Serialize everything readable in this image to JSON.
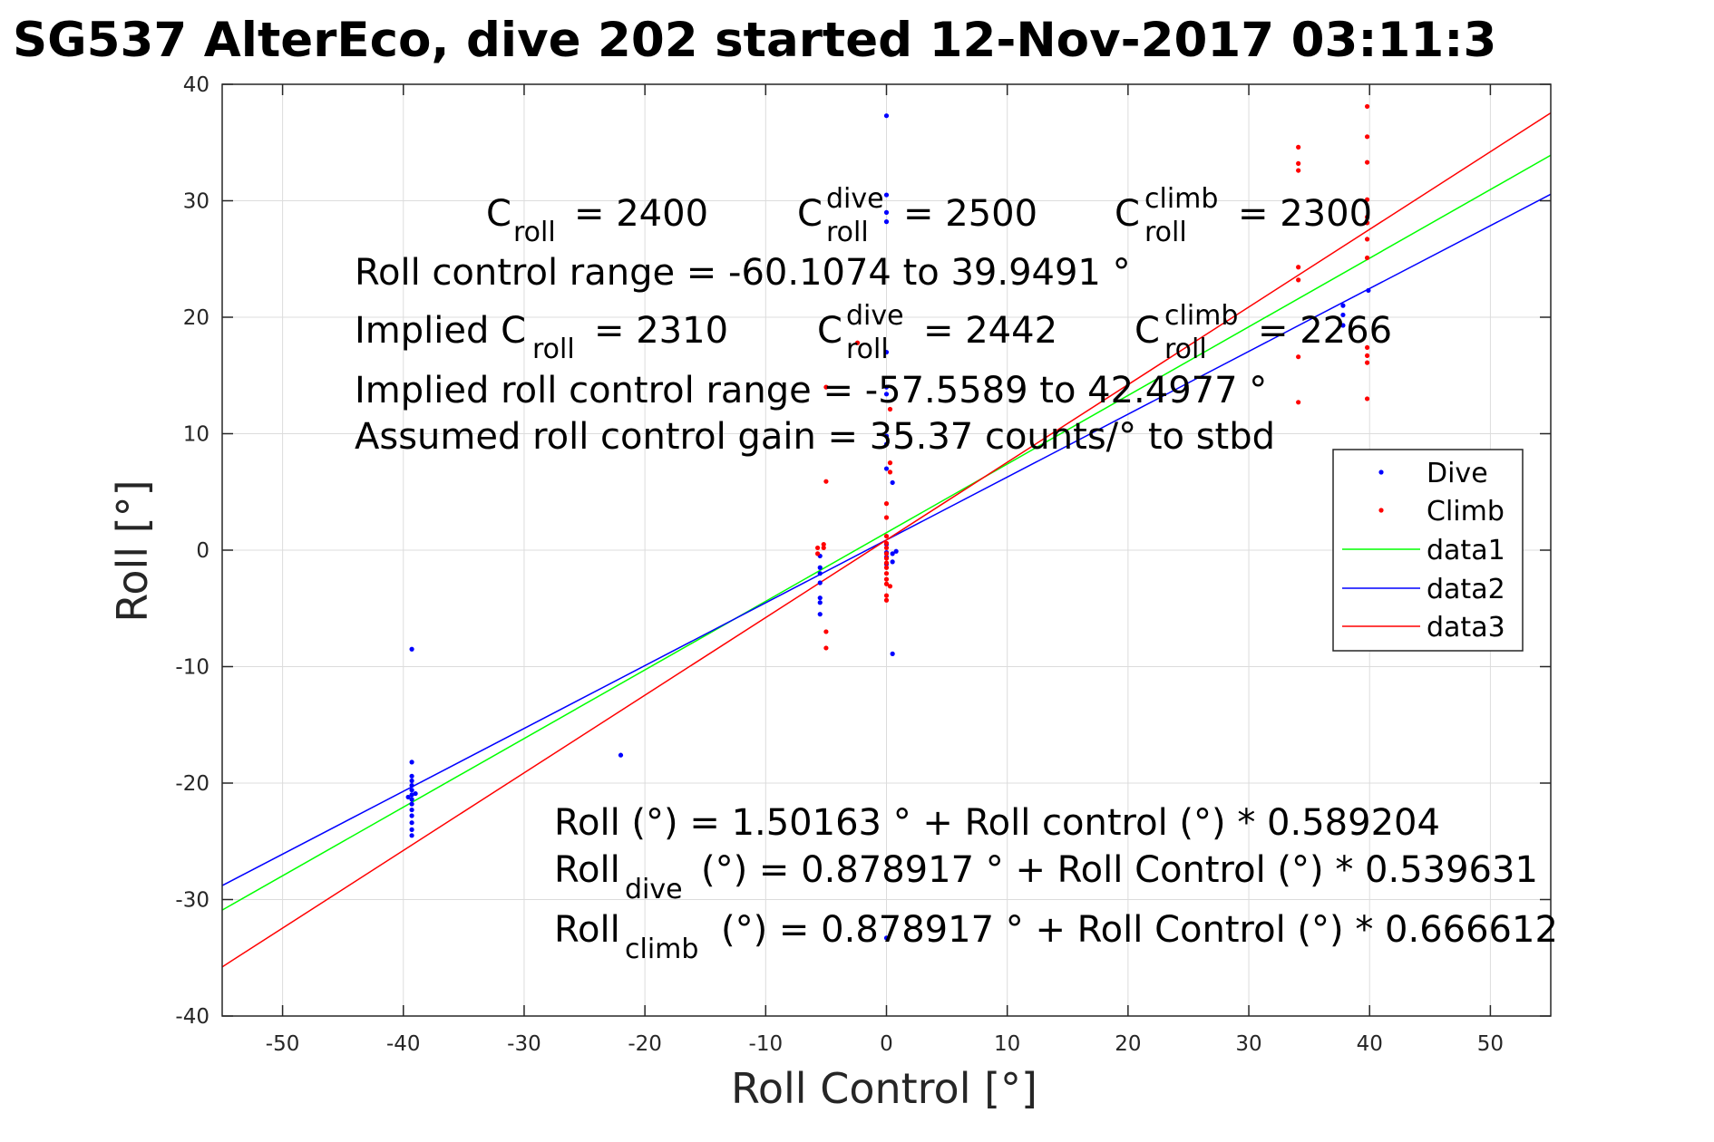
{
  "title": "SG537 AlterEco, dive 202 started 12-Nov-2017 03:11:3",
  "annotations": {
    "c_roll_base": "C",
    "c_roll_sub": "roll",
    "c_roll_value": "= 2400",
    "c_dive_sup": "dive",
    "c_dive_sub": "roll",
    "c_dive_value": "= 2500",
    "c_climb_sup": "climb",
    "c_climb_sub": "roll",
    "c_climb_value": "= 2300",
    "roll_range": "Roll control range = -60.1074 to 39.9491 °",
    "implied_prefix": "Implied C",
    "implied_sub": "roll",
    "implied_value": "= 2310",
    "implied_dive_sup": "dive",
    "implied_dive_sub": "roll",
    "implied_dive_value": "= 2442",
    "implied_climb_sup": "climb",
    "implied_climb_sub": "roll",
    "implied_climb_value": "= 2266",
    "implied_range": "Implied roll control range = -57.5589 to 42.4977 °",
    "gain": "Assumed roll control gain = 35.37 counts/° to stbd",
    "fit_all": "Roll (°) = 1.50163 ° + Roll control (°) * 0.589204",
    "fit_dive_pre": "Roll",
    "fit_dive_sub": "dive",
    "fit_dive_post": "(°) = 0.878917 ° + Roll Control (°) * 0.539631",
    "fit_climb_pre": "Roll",
    "fit_climb_sub": "climb",
    "fit_climb_post": "(°) = 0.878917 ° + Roll Control (°) * 0.666612"
  },
  "chart_data": {
    "type": "scatter",
    "title": "SG537 AlterEco, dive 202 started 12-Nov-2017 03:11:3",
    "xlabel": "Roll Control [°]",
    "ylabel": "Roll [°]",
    "xlim": [
      -55,
      55
    ],
    "ylim": [
      -40,
      40
    ],
    "xticks": [
      -50,
      -40,
      -30,
      -20,
      -10,
      0,
      10,
      20,
      30,
      40,
      50
    ],
    "yticks": [
      -40,
      -30,
      -20,
      -10,
      0,
      10,
      20,
      30,
      40
    ],
    "xtick_labels": [
      "-50",
      "-40",
      "-30",
      "-20",
      "-10",
      "0",
      "10",
      "20",
      "30",
      "40",
      "50"
    ],
    "ytick_labels": [
      "-40",
      "-30",
      "-20",
      "-10",
      "0",
      "10",
      "20",
      "30",
      "40"
    ],
    "grid": true,
    "legend_position": "right",
    "series": [
      {
        "name": "Dive",
        "kind": "points",
        "color": "#0000ff",
        "points": [
          [
            -39.3,
            -8.5
          ],
          [
            -39.3,
            -18.2
          ],
          [
            -39.3,
            -19.4
          ],
          [
            -39.3,
            -19.8
          ],
          [
            -39.3,
            -20.2
          ],
          [
            -39.3,
            -20.6
          ],
          [
            -39.3,
            -21.0
          ],
          [
            -39.3,
            -21.4
          ],
          [
            -39.3,
            -21.8
          ],
          [
            -39.3,
            -22.3
          ],
          [
            -39.3,
            -22.8
          ],
          [
            -39.3,
            -23.4
          ],
          [
            -39.3,
            -24.0
          ],
          [
            -39.3,
            -24.5
          ],
          [
            -39.0,
            -20.9
          ],
          [
            -39.6,
            -21.2
          ],
          [
            -22.0,
            -17.6
          ],
          [
            -5.5,
            -0.5
          ],
          [
            -5.5,
            -1.5
          ],
          [
            -5.5,
            -2.0
          ],
          [
            -5.5,
            -2.8
          ],
          [
            -5.5,
            -4.1
          ],
          [
            -5.5,
            -4.5
          ],
          [
            -5.5,
            -5.5
          ],
          [
            0.0,
            37.3
          ],
          [
            0.0,
            30.5
          ],
          [
            0.0,
            29.0
          ],
          [
            0.0,
            28.2
          ],
          [
            0.0,
            17.0
          ],
          [
            0.0,
            14.0
          ],
          [
            0.0,
            13.4
          ],
          [
            0.0,
            9.8
          ],
          [
            0.0,
            9.1
          ],
          [
            0.0,
            7.0
          ],
          [
            0.0,
            0.5
          ],
          [
            0.0,
            -0.2
          ],
          [
            0.0,
            -0.6
          ],
          [
            0.0,
            -1.2
          ],
          [
            0.0,
            -33.3
          ],
          [
            0.5,
            -8.9
          ],
          [
            0.5,
            5.8
          ],
          [
            0.5,
            -0.3
          ],
          [
            0.5,
            -1.0
          ],
          [
            0.8,
            -0.1
          ],
          [
            37.8,
            21.0
          ],
          [
            37.8,
            20.2
          ],
          [
            37.8,
            19.3
          ],
          [
            39.9,
            22.3
          ]
        ]
      },
      {
        "name": "Climb",
        "kind": "points",
        "color": "#ff0000",
        "points": [
          [
            -5.7,
            0.2
          ],
          [
            -5.7,
            -0.3
          ],
          [
            -5.2,
            0.2
          ],
          [
            -5.2,
            0.5
          ],
          [
            -5.0,
            5.9
          ],
          [
            -5.0,
            14.0
          ],
          [
            -5.0,
            -7.0
          ],
          [
            -5.0,
            -8.4
          ],
          [
            -2.4,
            17.8
          ],
          [
            0.0,
            4.0
          ],
          [
            0.0,
            2.8
          ],
          [
            0.0,
            1.2
          ],
          [
            0.0,
            0.6
          ],
          [
            0.0,
            0.2
          ],
          [
            0.0,
            -0.3
          ],
          [
            0.0,
            -0.7
          ],
          [
            0.0,
            -1.1
          ],
          [
            0.0,
            -1.5
          ],
          [
            0.0,
            -2.0
          ],
          [
            0.0,
            -2.5
          ],
          [
            0.0,
            -2.9
          ],
          [
            0.0,
            -3.9
          ],
          [
            0.0,
            -4.3
          ],
          [
            0.3,
            12.1
          ],
          [
            0.3,
            7.5
          ],
          [
            0.3,
            6.7
          ],
          [
            0.3,
            -3.1
          ],
          [
            34.1,
            34.6
          ],
          [
            34.1,
            33.2
          ],
          [
            34.1,
            32.6
          ],
          [
            34.1,
            24.3
          ],
          [
            34.1,
            23.2
          ],
          [
            34.1,
            16.6
          ],
          [
            34.1,
            12.7
          ],
          [
            39.8,
            38.1
          ],
          [
            39.8,
            35.5
          ],
          [
            39.8,
            33.3
          ],
          [
            39.8,
            30.1
          ],
          [
            39.8,
            28.6
          ],
          [
            39.8,
            28.1
          ],
          [
            39.8,
            26.7
          ],
          [
            39.8,
            25.1
          ],
          [
            39.8,
            17.4
          ],
          [
            39.8,
            16.7
          ],
          [
            39.8,
            16.1
          ],
          [
            39.8,
            13.0
          ]
        ]
      },
      {
        "name": "data1",
        "kind": "line",
        "color": "#00ff00",
        "intercept": 1.50163,
        "slope": 0.589204
      },
      {
        "name": "data2",
        "kind": "line",
        "color": "#0000ff",
        "intercept": 0.878917,
        "slope": 0.539631
      },
      {
        "name": "data3",
        "kind": "line",
        "color": "#ff0000",
        "intercept": 0.878917,
        "slope": 0.666612
      }
    ]
  }
}
